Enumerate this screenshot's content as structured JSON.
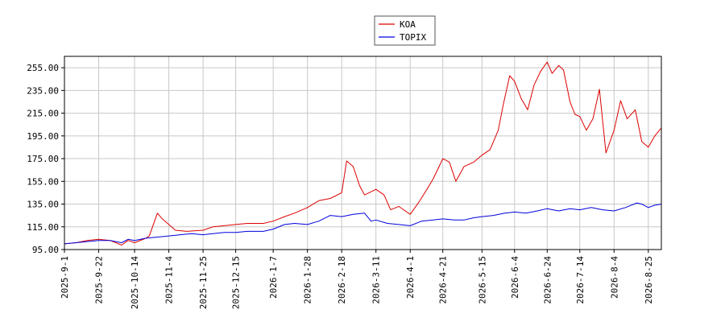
{
  "chart_data": {
    "type": "line",
    "title": "",
    "xlabel": "",
    "ylabel": "",
    "ylim": [
      95.0,
      265.0
    ],
    "y_ticks": [
      "95.00",
      "115.00",
      "135.00",
      "155.00",
      "175.00",
      "195.00",
      "215.00",
      "235.00",
      "255.00"
    ],
    "x_ticks": [
      "2025-9-1",
      "2025-9-22",
      "2025-10-14",
      "2025-11-4",
      "2025-11-25",
      "2025-12-15",
      "2026-1-7",
      "2026-1-28",
      "2026-2-18",
      "2026-3-11",
      "2026-4-1",
      "2026-4-21",
      "2026-5-15",
      "2026-6-4",
      "2026-6-24",
      "2026-7-14",
      "2026-8-4",
      "2026-8-25"
    ],
    "grid": true,
    "legend_position": "top-center",
    "series": [
      {
        "name": "KOA",
        "color": "#dd0000",
        "points": [
          [
            "2025-9-1",
            100
          ],
          [
            "2025-9-8",
            101
          ],
          [
            "2025-9-15",
            103
          ],
          [
            "2025-9-22",
            104
          ],
          [
            "2025-9-29",
            103
          ],
          [
            "2025-10-6",
            99
          ],
          [
            "2025-10-10",
            103
          ],
          [
            "2025-10-14",
            101
          ],
          [
            "2025-10-21",
            105
          ],
          [
            "2025-10-23",
            107
          ],
          [
            "2025-10-28",
            127
          ],
          [
            "2025-10-31",
            122
          ],
          [
            "2025-11-4",
            117
          ],
          [
            "2025-11-8",
            112
          ],
          [
            "2025-11-15",
            111
          ],
          [
            "2025-11-25",
            112
          ],
          [
            "2025-12-1",
            115
          ],
          [
            "2025-12-8",
            116
          ],
          [
            "2025-12-15",
            117
          ],
          [
            "2025-12-22",
            118
          ],
          [
            "2026-1-1",
            118
          ],
          [
            "2026-1-7",
            120
          ],
          [
            "2026-1-14",
            124
          ],
          [
            "2026-1-20",
            127
          ],
          [
            "2026-1-28",
            132
          ],
          [
            "2026-2-4",
            138
          ],
          [
            "2026-2-11",
            140
          ],
          [
            "2026-2-18",
            145
          ],
          [
            "2026-2-21",
            173
          ],
          [
            "2026-2-25",
            168
          ],
          [
            "2026-3-1",
            151
          ],
          [
            "2026-3-4",
            143
          ],
          [
            "2026-3-11",
            148
          ],
          [
            "2026-3-16",
            143
          ],
          [
            "2026-3-20",
            130
          ],
          [
            "2026-3-25",
            133
          ],
          [
            "2026-4-1",
            126
          ],
          [
            "2026-4-6",
            136
          ],
          [
            "2026-4-10",
            145
          ],
          [
            "2026-4-15",
            157
          ],
          [
            "2026-4-21",
            175
          ],
          [
            "2026-4-25",
            172
          ],
          [
            "2026-4-29",
            155
          ],
          [
            "2026-5-4",
            168
          ],
          [
            "2026-5-10",
            172
          ],
          [
            "2026-5-15",
            178
          ],
          [
            "2026-5-20",
            183
          ],
          [
            "2026-5-25",
            200
          ],
          [
            "2026-5-28",
            222
          ],
          [
            "2026-6-1",
            248
          ],
          [
            "2026-6-4",
            243
          ],
          [
            "2026-6-8",
            228
          ],
          [
            "2026-6-12",
            218
          ],
          [
            "2026-6-16",
            240
          ],
          [
            "2026-6-20",
            252
          ],
          [
            "2026-6-24",
            260
          ],
          [
            "2026-6-27",
            250
          ],
          [
            "2026-7-1",
            257
          ],
          [
            "2026-7-4",
            253
          ],
          [
            "2026-7-8",
            225
          ],
          [
            "2026-7-11",
            214
          ],
          [
            "2026-7-14",
            212
          ],
          [
            "2026-7-18",
            200
          ],
          [
            "2026-7-22",
            210
          ],
          [
            "2026-7-26",
            236
          ],
          [
            "2026-7-30",
            180
          ],
          [
            "2026-8-4",
            200
          ],
          [
            "2026-8-8",
            226
          ],
          [
            "2026-8-12",
            210
          ],
          [
            "2026-8-17",
            218
          ],
          [
            "2026-8-21",
            190
          ],
          [
            "2026-8-25",
            185
          ],
          [
            "2026-8-29",
            195
          ],
          [
            "2026-9-2",
            202
          ]
        ]
      },
      {
        "name": "TOPIX",
        "color": "#0000dd",
        "points": [
          [
            "2025-9-1",
            100
          ],
          [
            "2025-9-8",
            101
          ],
          [
            "2025-9-15",
            102
          ],
          [
            "2025-9-22",
            103
          ],
          [
            "2025-9-29",
            103
          ],
          [
            "2025-10-6",
            101
          ],
          [
            "2025-10-10",
            104
          ],
          [
            "2025-10-14",
            103
          ],
          [
            "2025-10-21",
            105
          ],
          [
            "2025-10-28",
            106
          ],
          [
            "2025-11-4",
            107
          ],
          [
            "2025-11-11",
            108
          ],
          [
            "2025-11-18",
            109
          ],
          [
            "2025-11-25",
            108
          ],
          [
            "2025-12-1",
            109
          ],
          [
            "2025-12-8",
            110
          ],
          [
            "2025-12-15",
            110
          ],
          [
            "2025-12-22",
            111
          ],
          [
            "2026-1-1",
            111
          ],
          [
            "2026-1-7",
            113
          ],
          [
            "2026-1-14",
            117
          ],
          [
            "2026-1-20",
            118
          ],
          [
            "2026-1-28",
            117
          ],
          [
            "2026-2-4",
            120
          ],
          [
            "2026-2-11",
            125
          ],
          [
            "2026-2-18",
            124
          ],
          [
            "2026-2-25",
            126
          ],
          [
            "2026-3-4",
            127
          ],
          [
            "2026-3-8",
            120
          ],
          [
            "2026-3-11",
            121
          ],
          [
            "2026-3-18",
            118
          ],
          [
            "2026-3-25",
            117
          ],
          [
            "2026-4-1",
            116
          ],
          [
            "2026-4-8",
            120
          ],
          [
            "2026-4-15",
            121
          ],
          [
            "2026-4-21",
            122
          ],
          [
            "2026-4-28",
            121
          ],
          [
            "2026-5-4",
            121
          ],
          [
            "2026-5-10",
            123
          ],
          [
            "2026-5-15",
            124
          ],
          [
            "2026-5-22",
            125
          ],
          [
            "2026-5-29",
            127
          ],
          [
            "2026-6-4",
            128
          ],
          [
            "2026-6-11",
            127
          ],
          [
            "2026-6-18",
            129
          ],
          [
            "2026-6-24",
            131
          ],
          [
            "2026-7-1",
            129
          ],
          [
            "2026-7-8",
            131
          ],
          [
            "2026-7-14",
            130
          ],
          [
            "2026-7-21",
            132
          ],
          [
            "2026-7-28",
            130
          ],
          [
            "2026-8-4",
            129
          ],
          [
            "2026-8-11",
            132
          ],
          [
            "2026-8-18",
            136
          ],
          [
            "2026-8-21",
            135
          ],
          [
            "2026-8-25",
            132
          ],
          [
            "2026-8-29",
            134
          ],
          [
            "2026-9-2",
            135
          ]
        ]
      }
    ]
  }
}
